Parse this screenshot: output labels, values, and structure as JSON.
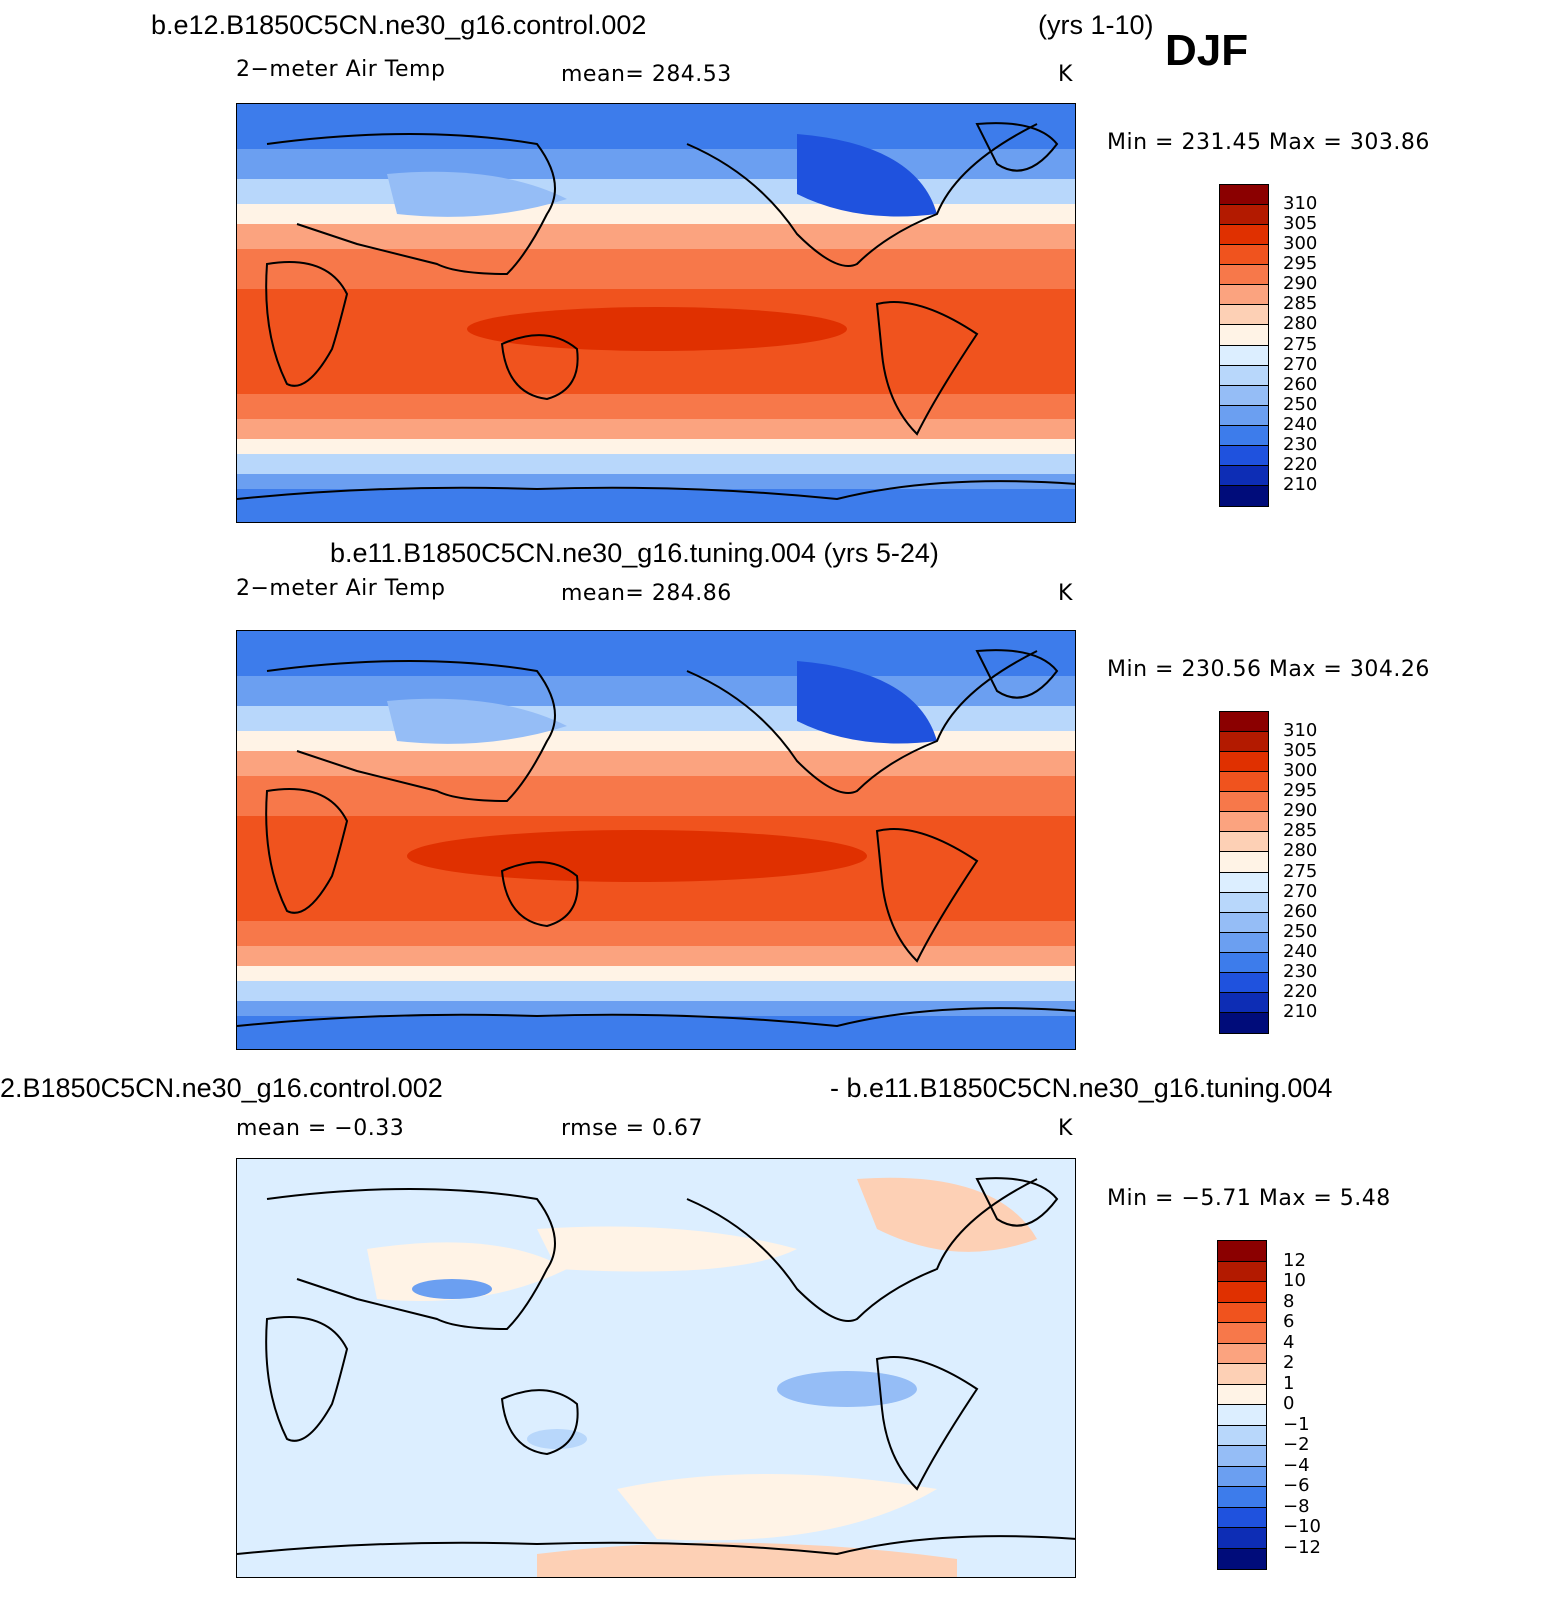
{
  "header": {
    "case1": "b.e12.B1850C5CN.ne30_g16.control.002",
    "years1": "(yrs 1-10)",
    "season": "DJF"
  },
  "panels": [
    {
      "title": "",
      "variable": "2−meter Air Temp",
      "stat": "mean= 284.53",
      "units": "K",
      "minmax": "Min = 231.45 Max = 303.86",
      "levels": [
        "310",
        "305",
        "300",
        "295",
        "290",
        "285",
        "280",
        "275",
        "270",
        "260",
        "250",
        "240",
        "230",
        "220",
        "210"
      ],
      "colors": [
        "#8b0000",
        "#b31a00",
        "#e03000",
        "#f0531e",
        "#f7784a",
        "#fba37f",
        "#fdd0b5",
        "#fff3e6",
        "#dceeff",
        "#b8d7fb",
        "#95bdf6",
        "#6b9ff1",
        "#3d7ceb",
        "#1f52de",
        "#0d2db5",
        "#000c7a"
      ]
    },
    {
      "title": "b.e11.B1850C5CN.ne30_g16.tuning.004 (yrs 5-24)",
      "variable": "2−meter Air Temp",
      "stat": "mean= 284.86",
      "units": "K",
      "minmax": "Min = 230.56 Max = 304.26",
      "levels": [
        "310",
        "305",
        "300",
        "295",
        "290",
        "285",
        "280",
        "275",
        "270",
        "260",
        "250",
        "240",
        "230",
        "220",
        "210"
      ],
      "colors": [
        "#8b0000",
        "#b31a00",
        "#e03000",
        "#f0531e",
        "#f7784a",
        "#fba37f",
        "#fdd0b5",
        "#fff3e6",
        "#dceeff",
        "#b8d7fb",
        "#95bdf6",
        "#6b9ff1",
        "#3d7ceb",
        "#1f52de",
        "#0d2db5",
        "#000c7a"
      ]
    },
    {
      "title_left": "2.B1850C5CN.ne30_g16.control.002",
      "title_right": "- b.e11.B1850C5CN.ne30_g16.tuning.004",
      "stat_left": "mean =   −0.33",
      "stat_mid": "rmse =    0.67",
      "units": "K",
      "minmax": "Min =  −5.71 Max =    5.48",
      "levels": [
        "12",
        "10",
        "8",
        "6",
        "4",
        "2",
        "1",
        "0",
        "−1",
        "−2",
        "−4",
        "−6",
        "−8",
        "−10",
        "−12"
      ],
      "colors": [
        "#8b0000",
        "#b31a00",
        "#e03000",
        "#f0531e",
        "#f7784a",
        "#fba37f",
        "#fdd0b5",
        "#fff3e6",
        "#dceeff",
        "#b8d7fb",
        "#95bdf6",
        "#6b9ff1",
        "#3d7ceb",
        "#1f52de",
        "#0d2db5",
        "#000c7a"
      ]
    }
  ]
}
